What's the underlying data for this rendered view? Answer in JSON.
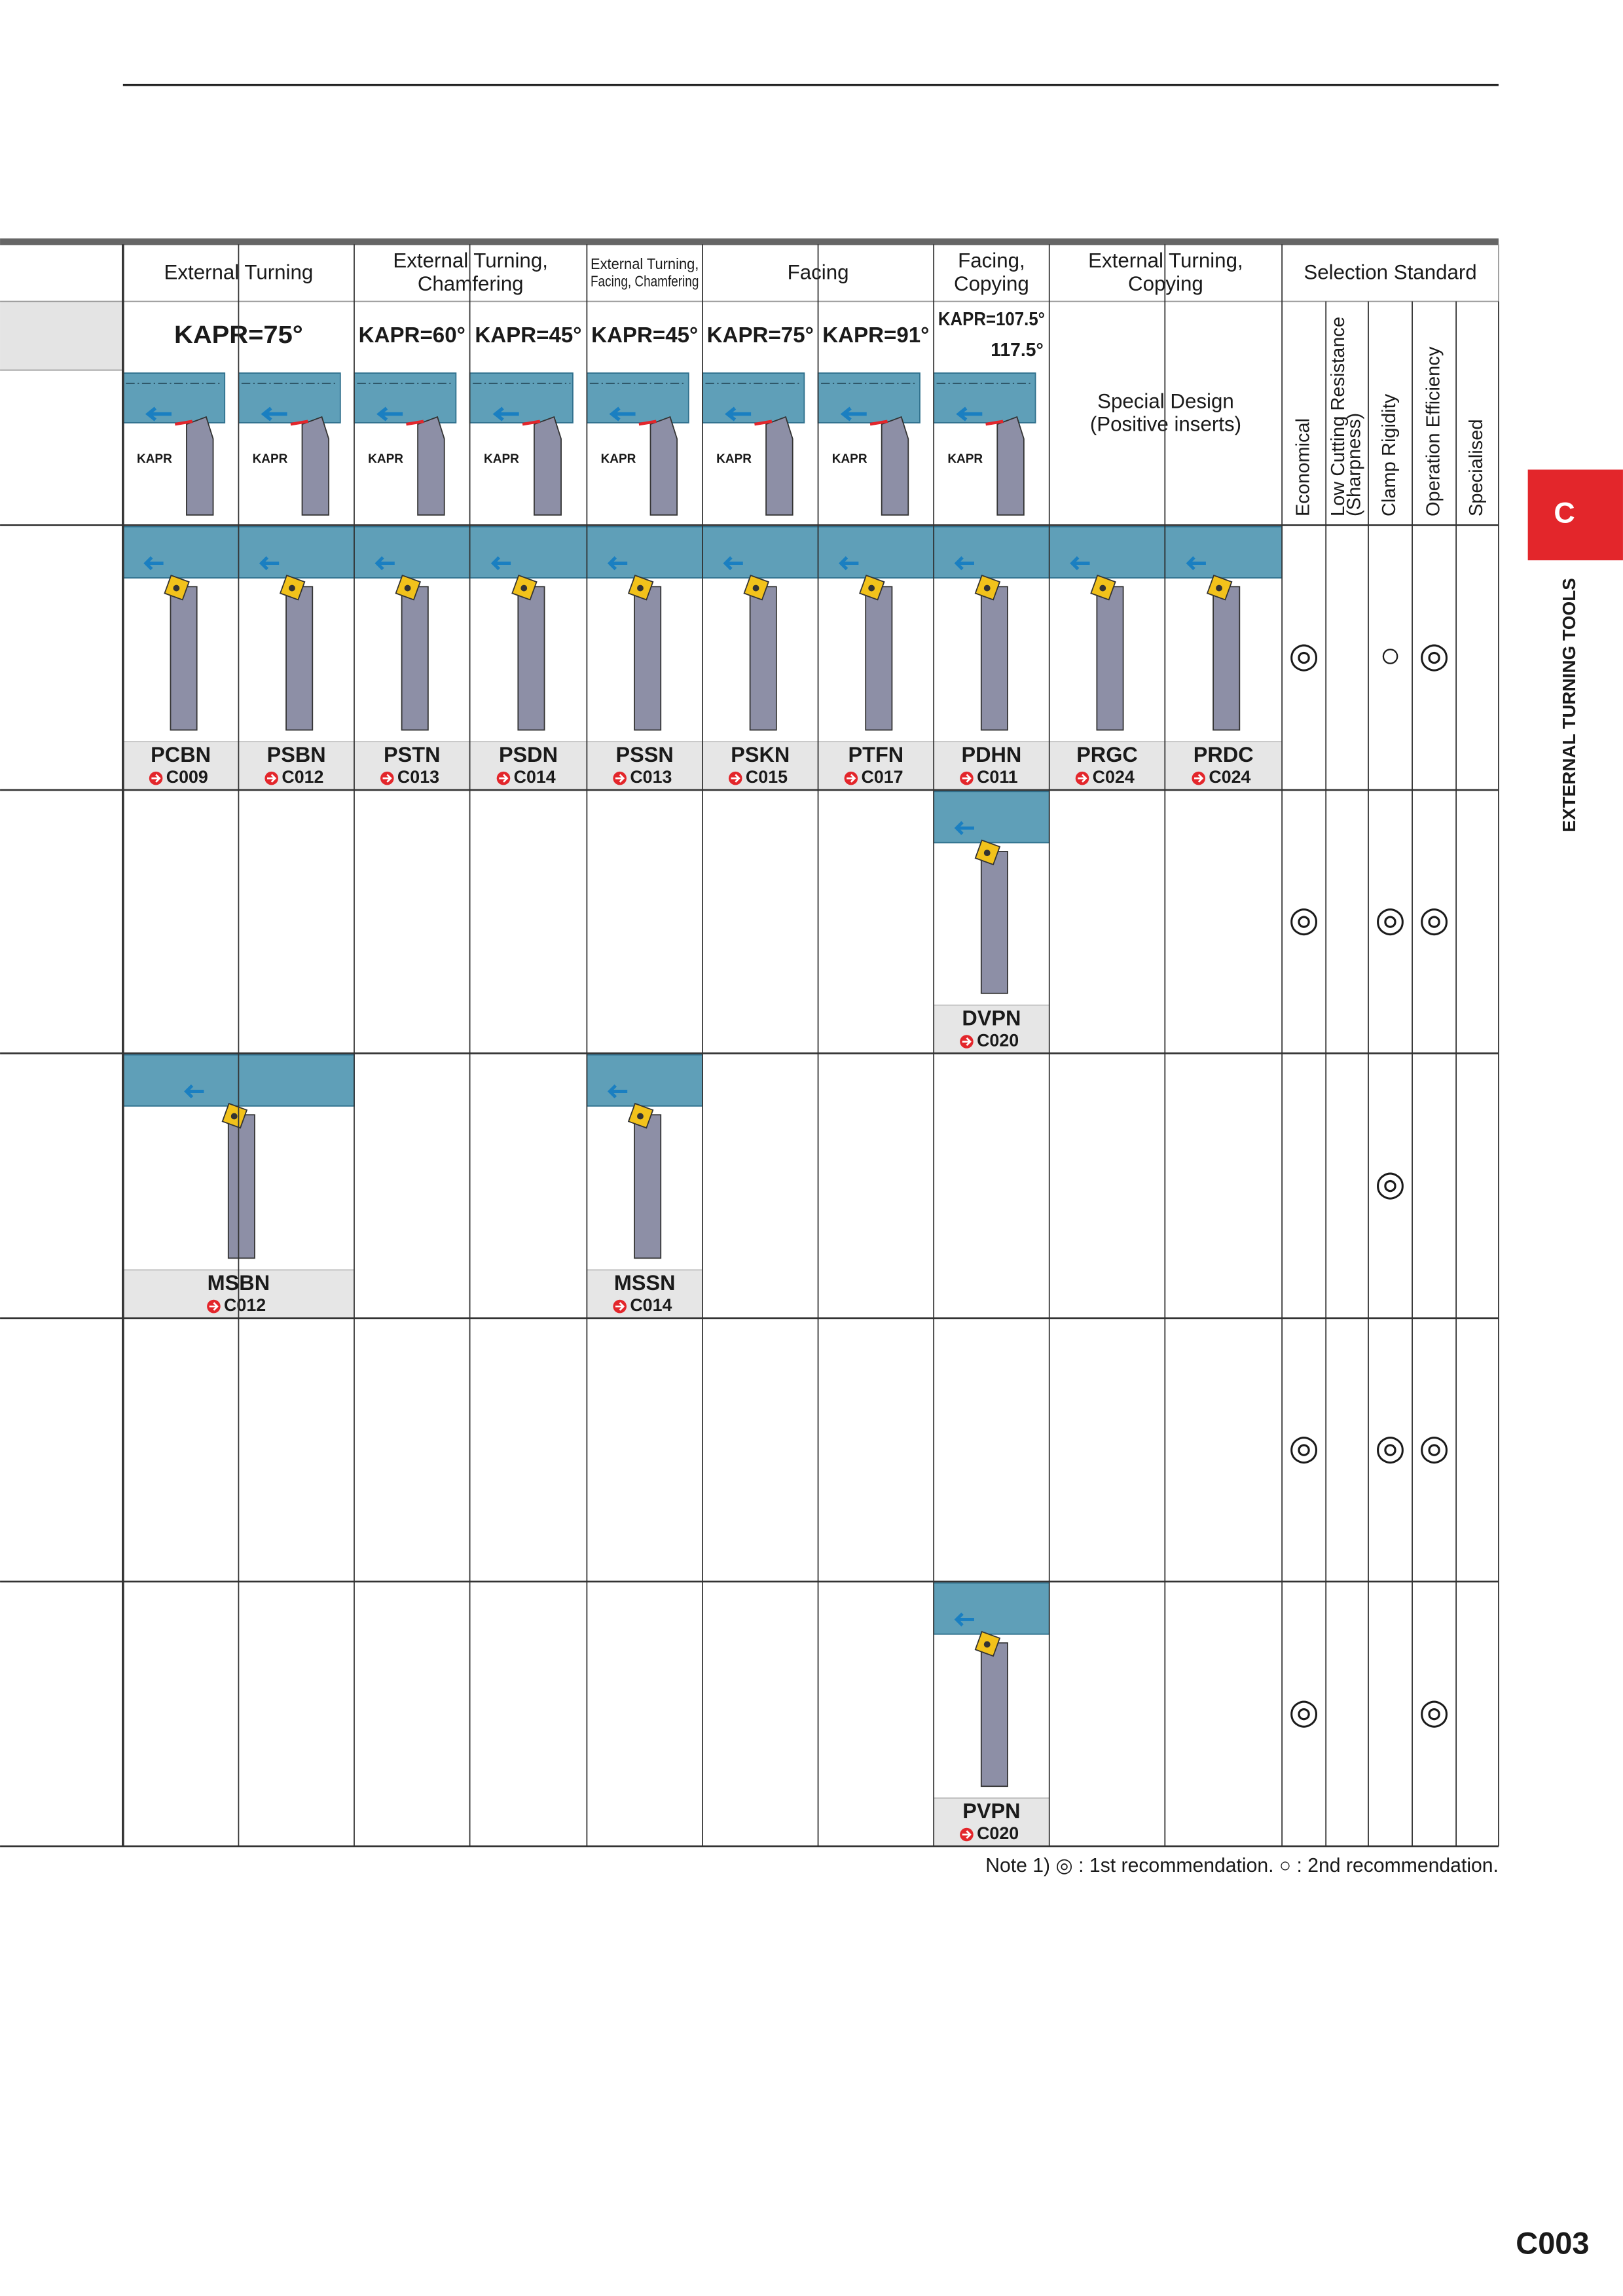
{
  "side_tab": {
    "letter": "C",
    "label": "EXTERNAL TURNING TOOLS"
  },
  "header": {
    "groups": [
      [
        "External Turning"
      ],
      [
        "External Turning,",
        "Chamfering"
      ],
      [
        "External Turning,",
        "Facing, Chamfering"
      ],
      [
        "Facing"
      ],
      [
        "Facing,",
        "Copying"
      ],
      [
        "External Turning,",
        "Copying"
      ]
    ],
    "kapr": [
      [
        "KAPR=75°"
      ],
      [
        "KAPR=60°"
      ],
      [
        "KAPR=45°"
      ],
      [
        "KAPR=45°"
      ],
      [
        "KAPR=75°"
      ],
      [
        "KAPR=91°"
      ],
      [
        "KAPR=107.5°",
        "117.5°"
      ]
    ],
    "special": [
      "Special Design",
      "(Positive inserts)"
    ],
    "diagram_label": "KAPR",
    "selection_title": "Selection Standard",
    "criteria": [
      [
        "Economical"
      ],
      [
        "Low Cutting Resistance",
        "(Sharpness)"
      ],
      [
        "Clamp Rigidity"
      ],
      [
        "Operation Efficiency"
      ],
      [
        "Specialised"
      ]
    ]
  },
  "rows": [
    {
      "cells": [
        {
          "name": "PCBN",
          "ref": "C009"
        },
        {
          "name": "PSBN",
          "ref": "C012"
        },
        {
          "name": "PSTN",
          "ref": "C013"
        },
        {
          "name": "PSDN",
          "ref": "C014"
        },
        {
          "name": "PSSN",
          "ref": "C013"
        },
        {
          "name": "PSKN",
          "ref": "C015"
        },
        {
          "name": "PTFN",
          "ref": "C017"
        },
        {
          "name": "PDHN",
          "ref": "C011"
        },
        {
          "name": "PRGC",
          "ref": "C024"
        },
        {
          "name": "PRDC",
          "ref": "C024"
        }
      ],
      "marks": [
        "◎",
        null,
        "○",
        "◎",
        null
      ]
    },
    {
      "cells": [
        null,
        null,
        null,
        null,
        null,
        null,
        null,
        {
          "name": "DVPN",
          "ref": "C020"
        },
        null,
        null
      ],
      "marks": [
        "◎",
        null,
        "◎",
        "◎",
        null
      ]
    },
    {
      "cells": [
        {
          "name": "MSBN",
          "ref": "C012"
        },
        null,
        null,
        null,
        {
          "name": "MSSN",
          "ref": "C014"
        },
        null,
        null,
        null,
        null,
        null
      ],
      "marks": [
        null,
        null,
        "◎",
        null,
        null
      ]
    },
    {
      "cells": [
        null,
        null,
        null,
        null,
        null,
        null,
        null,
        null,
        null,
        null
      ],
      "marks": [
        "◎",
        null,
        "◎",
        "◎",
        null
      ]
    },
    {
      "cells": [
        null,
        null,
        null,
        null,
        null,
        null,
        null,
        {
          "name": "PVPN",
          "ref": "C020"
        },
        null,
        null
      ],
      "marks": [
        "◎",
        null,
        null,
        "◎",
        null
      ]
    }
  ],
  "note": "Note 1) ◎ : 1st recommendation. ○ : 2nd recommendation.",
  "page_number": "C003"
}
